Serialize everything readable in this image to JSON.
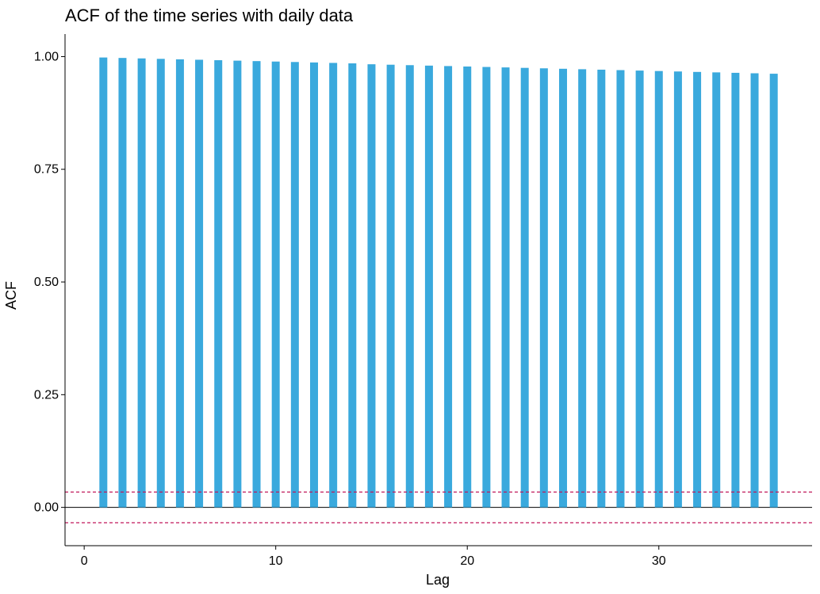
{
  "chart_data": {
    "type": "bar",
    "title": "ACF of the time series with daily data",
    "xlabel": "Lag",
    "ylabel": "ACF",
    "x": [
      1,
      2,
      3,
      4,
      5,
      6,
      7,
      8,
      9,
      10,
      11,
      12,
      13,
      14,
      15,
      16,
      17,
      18,
      19,
      20,
      21,
      22,
      23,
      24,
      25,
      26,
      27,
      28,
      29,
      30,
      31,
      32,
      33,
      34,
      35,
      36
    ],
    "values": [
      0.998,
      0.997,
      0.996,
      0.995,
      0.994,
      0.993,
      0.992,
      0.991,
      0.99,
      0.989,
      0.988,
      0.987,
      0.986,
      0.985,
      0.983,
      0.982,
      0.981,
      0.98,
      0.979,
      0.978,
      0.977,
      0.976,
      0.975,
      0.974,
      0.973,
      0.972,
      0.971,
      0.97,
      0.969,
      0.968,
      0.967,
      0.966,
      0.965,
      0.964,
      0.963,
      0.962
    ],
    "xlim": [
      -1,
      38
    ],
    "ylim": [
      -0.085,
      1.05
    ],
    "x_ticks": [
      0,
      10,
      20,
      30
    ],
    "x_tick_labels": [
      "0",
      "10",
      "20",
      "30"
    ],
    "y_ticks": [
      0,
      0.25,
      0.5,
      0.75,
      1.0
    ],
    "y_tick_labels": [
      "0.00",
      "0.25",
      "0.50",
      "0.75",
      "1.00"
    ],
    "confidence_bound": 0.034,
    "grid": false,
    "colors": {
      "bars": "#3aa9dd",
      "confidence_lines": "#c0185a",
      "axis": "#000000",
      "zero_line": "#000000"
    }
  }
}
